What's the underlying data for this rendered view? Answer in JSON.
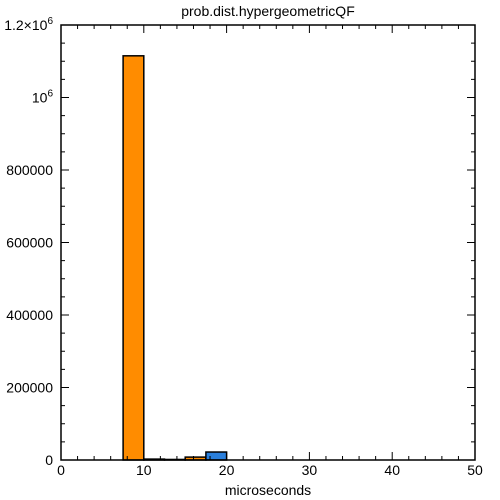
{
  "chart_data": {
    "type": "bar",
    "title": "prob.dist.hypergeometricQF",
    "xlabel": "microseconds",
    "ylabel": "",
    "xlim": [
      0,
      50
    ],
    "ylim": [
      0,
      1200000
    ],
    "x_ticks": [
      0,
      10,
      20,
      30,
      40,
      50
    ],
    "x_tick_labels": [
      "0",
      "10",
      "20",
      "30",
      "40",
      "50"
    ],
    "y_ticks": [
      0,
      200000,
      400000,
      600000,
      800000,
      1000000,
      1200000
    ],
    "y_tick_labels": [
      {
        "base": "0",
        "sup": ""
      },
      {
        "base": "200000",
        "sup": ""
      },
      {
        "base": "400000",
        "sup": ""
      },
      {
        "base": "600000",
        "sup": ""
      },
      {
        "base": "800000",
        "sup": ""
      },
      {
        "base": "10",
        "sup": "6"
      },
      {
        "base": "1.2×10",
        "sup": "6"
      }
    ],
    "grid": false,
    "series": [
      {
        "name": "orange",
        "color": "#ff8c00",
        "bars": [
          {
            "x0": 7.5,
            "x1": 10,
            "value": 1115000
          },
          {
            "x0": 10,
            "x1": 12.5,
            "value": 2500
          },
          {
            "x0": 15,
            "x1": 17.5,
            "value": 8000
          }
        ]
      },
      {
        "name": "blue",
        "color": "#2a7fdc",
        "bars": [
          {
            "x0": 12.5,
            "x1": 15,
            "value": 1500
          },
          {
            "x0": 17.5,
            "x1": 20,
            "value": 22000
          }
        ]
      }
    ]
  }
}
